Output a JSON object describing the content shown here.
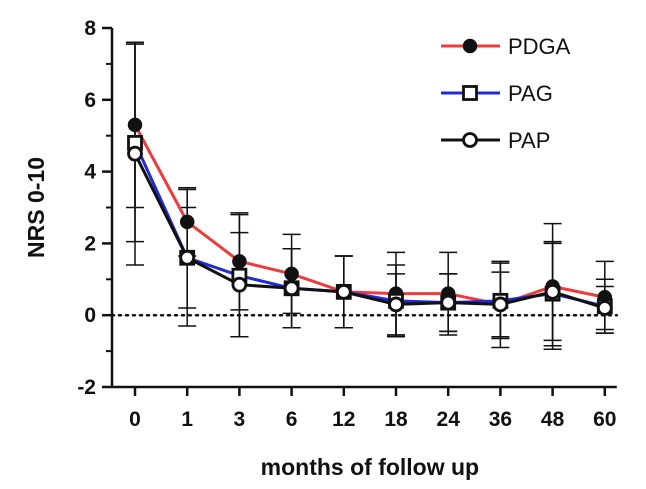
{
  "chart_data": {
    "type": "line",
    "title": "",
    "xlabel": "months of follow up",
    "ylabel": "NRS 0-10",
    "categories": [
      "0",
      "1",
      "3",
      "6",
      "12",
      "18",
      "24",
      "36",
      "48",
      "60"
    ],
    "ylim": [
      -2,
      8
    ],
    "yticks": [
      "-2",
      "0",
      "2",
      "4",
      "6",
      "8"
    ],
    "reference_line": 0,
    "legend_position": "top-right",
    "series": [
      {
        "name": "PDGA",
        "color": "#ee3b3b",
        "marker": "filled-circle",
        "values": [
          5.3,
          2.6,
          1.5,
          1.15,
          0.65,
          0.6,
          0.6,
          0.3,
          0.8,
          0.5
        ],
        "errors": [
          2.3,
          0.95,
          1.35,
          1.1,
          1.0,
          1.15,
          1.15,
          1.2,
          1.75,
          1.0
        ]
      },
      {
        "name": "PAG",
        "color": "#1f2bd6",
        "marker": "open-square",
        "values": [
          4.8,
          1.6,
          1.1,
          0.75,
          0.65,
          0.4,
          0.35,
          0.4,
          0.6,
          0.25
        ],
        "errors": [
          2.75,
          1.9,
          1.7,
          1.1,
          1.0,
          1.0,
          0.8,
          1.05,
          1.45,
          0.75
        ]
      },
      {
        "name": "PAP",
        "color": "#111111",
        "marker": "open-circle",
        "values": [
          4.5,
          1.6,
          0.85,
          0.75,
          0.65,
          0.3,
          0.35,
          0.3,
          0.65,
          0.2
        ],
        "errors": [
          3.1,
          1.4,
          1.45,
          1.1,
          1.0,
          0.85,
          0.8,
          0.9,
          1.35,
          0.6
        ]
      }
    ]
  }
}
